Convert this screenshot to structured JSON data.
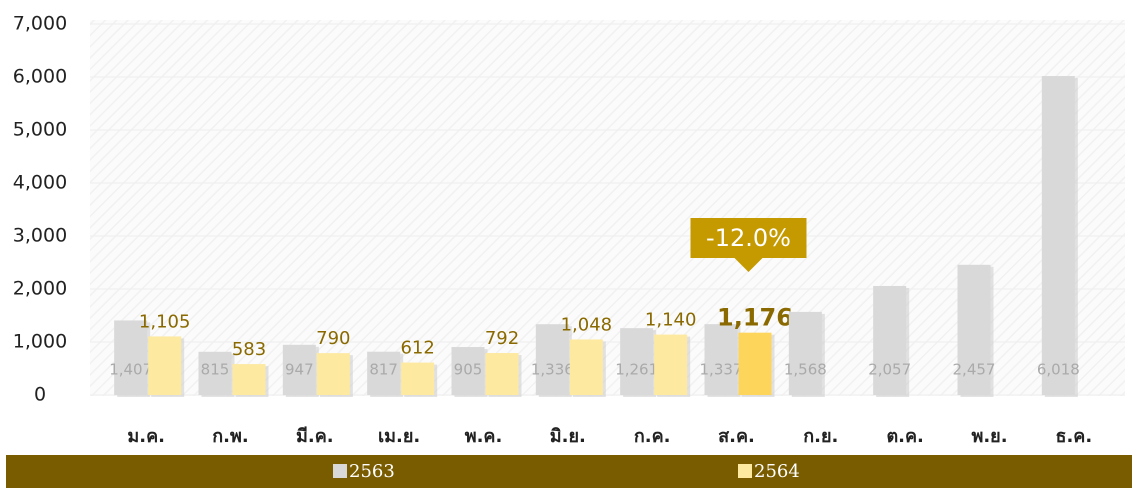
{
  "chart_data": {
    "type": "bar",
    "categories": [
      "ม.ค.",
      "ก.พ.",
      "มี.ค.",
      "เม.ย.",
      "พ.ค.",
      "มิ.ย.",
      "ก.ค.",
      "ส.ค.",
      "ก.ย.",
      "ต.ค.",
      "พ.ย.",
      "ธ.ค."
    ],
    "series": [
      {
        "name": "2563",
        "color": "#d9d9d9",
        "values": [
          1407,
          815,
          947,
          817,
          905,
          1336,
          1261,
          1337,
          1568,
          2057,
          2457,
          6018
        ],
        "value_labels": [
          "1,407",
          "815",
          "947",
          "817",
          "905",
          "1,336",
          "1,261",
          "1,337",
          "1,568",
          "2,057",
          "2,457",
          "6,018"
        ]
      },
      {
        "name": "2564",
        "color": "#fde9a0",
        "values": [
          1105,
          583,
          790,
          612,
          792,
          1048,
          1140,
          1176,
          null,
          null,
          null,
          null
        ],
        "value_labels": [
          "1,105",
          "583",
          "790",
          "612",
          "792",
          "1,048",
          "1,140",
          "1,176",
          null,
          null,
          null,
          null
        ]
      }
    ],
    "annotation": "-12.0%",
    "ylim": [
      0,
      7000
    ],
    "yticks": [
      0,
      {
        "value": 1000,
        "label": "1,000"
      },
      {
        "value": 2000,
        "label": "2,000"
      },
      {
        "value": 3000,
        "label": "3,000"
      },
      {
        "value": 4000,
        "label": "4,000"
      },
      {
        "value": 5000,
        "label": "5,000"
      },
      {
        "value": 6000,
        "label": "6,000"
      },
      {
        "value": 7000,
        "label": "7,000"
      }
    ],
    "grid": true
  }
}
